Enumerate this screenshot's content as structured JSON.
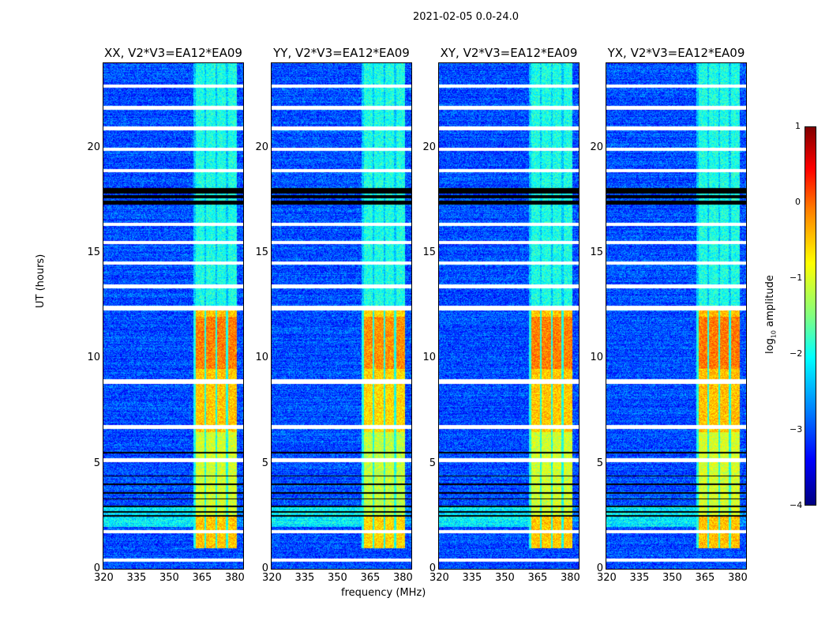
{
  "chart_data": {
    "type": "heatmap",
    "title": "2021-02-05 0.0-24.0",
    "xlabel": "frequency (MHz)",
    "ylabel": "UT (hours)",
    "xlim": [
      320,
      384
    ],
    "ylim": [
      0,
      24
    ],
    "xticks": [
      "320",
      "335",
      "350",
      "365",
      "380"
    ],
    "xtick_values": [
      320,
      335,
      350,
      365,
      380
    ],
    "yticks": [
      "0",
      "5",
      "10",
      "15",
      "20"
    ],
    "ytick_values": [
      0,
      5,
      10,
      15,
      20
    ],
    "panels": [
      {
        "title": "XX, V2*V3=EA12*EA09",
        "rfi_strength": 1.0
      },
      {
        "title": "YY, V2*V3=EA12*EA09",
        "rfi_strength": 1.15
      },
      {
        "title": "XY, V2*V3=EA12*EA09",
        "rfi_strength": 1.0
      },
      {
        "title": "YX, V2*V3=EA12*EA09",
        "rfi_strength": 0.95
      }
    ],
    "background_level": -3.0,
    "rfi_band_mhz": [
      362,
      381
    ],
    "rfi_channels_mhz": [
      [
        362,
        366
      ],
      [
        367,
        371
      ],
      [
        372,
        376
      ],
      [
        377,
        381
      ]
    ],
    "rfi_strong_hours": [
      1.0,
      12.5
    ],
    "rfi_strong_level": -0.6,
    "rfi_weak_level": -2.0,
    "flagged_hours": [
      [
        0.35,
        0.5
      ],
      [
        1.7,
        1.85
      ],
      [
        5.1,
        5.25
      ],
      [
        6.65,
        6.85
      ],
      [
        8.8,
        9.0
      ],
      [
        12.3,
        12.5
      ],
      [
        13.35,
        13.5
      ],
      [
        14.45,
        14.6
      ],
      [
        15.45,
        15.6
      ],
      [
        16.3,
        16.45
      ],
      [
        18.85,
        19.0
      ],
      [
        19.85,
        20.0
      ],
      [
        20.85,
        21.0
      ],
      [
        21.8,
        22.0
      ],
      [
        22.85,
        23.0
      ]
    ],
    "dark_hours": [
      [
        17.3,
        17.5
      ],
      [
        17.6,
        17.75
      ],
      [
        17.85,
        18.1
      ],
      [
        2.5,
        2.55
      ],
      [
        2.7,
        2.75
      ],
      [
        2.95,
        3.0
      ],
      [
        3.3,
        3.35
      ],
      [
        3.6,
        3.65
      ],
      [
        4.0,
        4.05
      ],
      [
        4.4,
        4.45
      ],
      [
        5.5,
        5.55
      ]
    ],
    "colorbar": {
      "label": "log10 amplitude",
      "range": [
        -4,
        1
      ],
      "ticks": [
        "1",
        "0",
        "−1",
        "−2",
        "−3",
        "−4"
      ],
      "tick_values": [
        1,
        0,
        -1,
        -2,
        -3,
        -4
      ],
      "colormap": "jet"
    }
  }
}
